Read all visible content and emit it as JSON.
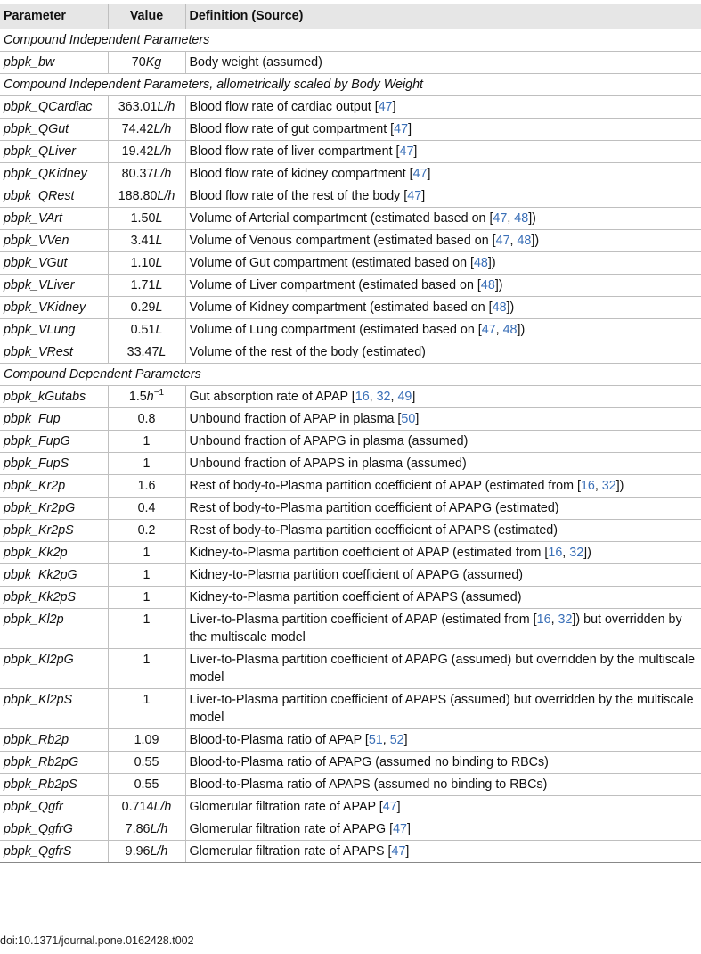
{
  "header": {
    "parameter": "Parameter",
    "value": "Value",
    "definition": "Definition (Source)"
  },
  "rows": [
    {
      "section": "Compound Independent Parameters"
    },
    {
      "param": "pbpk_bw",
      "num": "70",
      "unit": "Kg",
      "parts": [
        {
          "t": "Body weight (assumed)"
        }
      ]
    },
    {
      "section": "Compound Independent Parameters, allometrically scaled by Body Weight"
    },
    {
      "param": "pbpk_QCardiac",
      "num": "363.01",
      "unit": "L/h",
      "parts": [
        {
          "t": "Blood flow rate of cardiac output ["
        },
        {
          "r": "47"
        },
        {
          "t": "]"
        }
      ]
    },
    {
      "param": "pbpk_QGut",
      "num": "74.42",
      "unit": "L/h",
      "parts": [
        {
          "t": "Blood flow rate of gut compartment ["
        },
        {
          "r": "47"
        },
        {
          "t": "]"
        }
      ]
    },
    {
      "param": "pbpk_QLiver",
      "num": "19.42",
      "unit": "L/h",
      "parts": [
        {
          "t": "Blood flow rate of liver compartment ["
        },
        {
          "r": "47"
        },
        {
          "t": "]"
        }
      ]
    },
    {
      "param": "pbpk_QKidney",
      "num": "80.37",
      "unit": "L/h",
      "parts": [
        {
          "t": "Blood flow rate of kidney compartment ["
        },
        {
          "r": "47"
        },
        {
          "t": "]"
        }
      ]
    },
    {
      "param": "pbpk_QRest",
      "num": "188.80",
      "unit": "L/h",
      "parts": [
        {
          "t": "Blood flow rate of the rest of the body ["
        },
        {
          "r": "47"
        },
        {
          "t": "]"
        }
      ]
    },
    {
      "param": "pbpk_VArt",
      "num": "1.50",
      "unit": "L",
      "parts": [
        {
          "t": "Volume of Arterial compartment (estimated based on ["
        },
        {
          "r": "47"
        },
        {
          "t": ", "
        },
        {
          "r": "48"
        },
        {
          "t": "])"
        }
      ]
    },
    {
      "param": "pbpk_VVen",
      "num": "3.41",
      "unit": "L",
      "parts": [
        {
          "t": "Volume of Venous compartment (estimated based on ["
        },
        {
          "r": "47"
        },
        {
          "t": ", "
        },
        {
          "r": "48"
        },
        {
          "t": "])"
        }
      ]
    },
    {
      "param": "pbpk_VGut",
      "num": "1.10",
      "unit": "L",
      "parts": [
        {
          "t": "Volume of Gut compartment (estimated based on ["
        },
        {
          "r": "48"
        },
        {
          "t": "])"
        }
      ]
    },
    {
      "param": "pbpk_VLiver",
      "num": "1.71",
      "unit": "L",
      "parts": [
        {
          "t": "Volume of Liver compartment (estimated based on ["
        },
        {
          "r": "48"
        },
        {
          "t": "])"
        }
      ]
    },
    {
      "param": "pbpk_VKidney",
      "num": "0.29",
      "unit": "L",
      "parts": [
        {
          "t": "Volume of Kidney compartment (estimated based on ["
        },
        {
          "r": "48"
        },
        {
          "t": "])"
        }
      ]
    },
    {
      "param": "pbpk_VLung",
      "num": "0.51",
      "unit": "L",
      "parts": [
        {
          "t": "Volume of Lung compartment (estimated based on ["
        },
        {
          "r": "47"
        },
        {
          "t": ", "
        },
        {
          "r": "48"
        },
        {
          "t": "])"
        }
      ]
    },
    {
      "param": "pbpk_VRest",
      "num": "33.47",
      "unit": "L",
      "parts": [
        {
          "t": "Volume of the rest of the body (estimated)"
        }
      ]
    },
    {
      "section": "Compound Dependent Parameters"
    },
    {
      "param": "pbpk_kGutabs",
      "num": "1.5",
      "unit": "h",
      "sup": "−1",
      "parts": [
        {
          "t": "Gut absorption rate of APAP ["
        },
        {
          "r": "16"
        },
        {
          "t": ", "
        },
        {
          "r": "32"
        },
        {
          "t": ", "
        },
        {
          "r": "49"
        },
        {
          "t": "]"
        }
      ]
    },
    {
      "param": "pbpk_Fup",
      "num": "0.8",
      "parts": [
        {
          "t": "Unbound fraction of APAP in plasma ["
        },
        {
          "r": "50"
        },
        {
          "t": "]"
        }
      ]
    },
    {
      "param": "pbpk_FupG",
      "num": "1",
      "parts": [
        {
          "t": "Unbound fraction of APAPG in plasma (assumed)"
        }
      ]
    },
    {
      "param": "pbpk_FupS",
      "num": "1",
      "parts": [
        {
          "t": "Unbound fraction of APAPS in plasma (assumed)"
        }
      ]
    },
    {
      "param": "pbpk_Kr2p",
      "num": "1.6",
      "parts": [
        {
          "t": "Rest of body-to-Plasma partition coefficient of APAP (estimated from ["
        },
        {
          "r": "16"
        },
        {
          "t": ", "
        },
        {
          "r": "32"
        },
        {
          "t": "])"
        }
      ]
    },
    {
      "param": "pbpk_Kr2pG",
      "num": "0.4",
      "parts": [
        {
          "t": "Rest of body-to-Plasma partition coefficient of APAPG (estimated)"
        }
      ]
    },
    {
      "param": "pbpk_Kr2pS",
      "num": "0.2",
      "parts": [
        {
          "t": "Rest of body-to-Plasma partition coefficient of APAPS (estimated)"
        }
      ]
    },
    {
      "param": "pbpk_Kk2p",
      "num": "1",
      "parts": [
        {
          "t": "Kidney-to-Plasma partition coefficient of APAP (estimated from ["
        },
        {
          "r": "16"
        },
        {
          "t": ", "
        },
        {
          "r": "32"
        },
        {
          "t": "])"
        }
      ]
    },
    {
      "param": "pbpk_Kk2pG",
      "num": "1",
      "parts": [
        {
          "t": "Kidney-to-Plasma partition coefficient of APAPG (assumed)"
        }
      ]
    },
    {
      "param": "pbpk_Kk2pS",
      "num": "1",
      "parts": [
        {
          "t": "Kidney-to-Plasma partition coefficient of APAPS (assumed)"
        }
      ]
    },
    {
      "param": "pbpk_Kl2p",
      "num": "1",
      "parts": [
        {
          "t": "Liver-to-Plasma partition coefficient of APAP (estimated from ["
        },
        {
          "r": "16"
        },
        {
          "t": ", "
        },
        {
          "r": "32"
        },
        {
          "t": "]) but overridden by the multiscale model"
        }
      ]
    },
    {
      "param": "pbpk_Kl2pG",
      "num": "1",
      "parts": [
        {
          "t": "Liver-to-Plasma partition coefficient of APAPG (assumed) but overridden by the multiscale model"
        }
      ]
    },
    {
      "param": "pbpk_Kl2pS",
      "num": "1",
      "parts": [
        {
          "t": "Liver-to-Plasma partition coefficient of APAPS (assumed) but overridden by the multiscale model"
        }
      ]
    },
    {
      "param": "pbpk_Rb2p",
      "num": "1.09",
      "parts": [
        {
          "t": "Blood-to-Plasma ratio of APAP ["
        },
        {
          "r": "51"
        },
        {
          "t": ", "
        },
        {
          "r": "52"
        },
        {
          "t": "]"
        }
      ]
    },
    {
      "param": "pbpk_Rb2pG",
      "num": "0.55",
      "parts": [
        {
          "t": "Blood-to-Plasma ratio of APAPG (assumed no binding to RBCs)"
        }
      ]
    },
    {
      "param": "pbpk_Rb2pS",
      "num": "0.55",
      "parts": [
        {
          "t": "Blood-to-Plasma ratio of APAPS (assumed no binding to RBCs)"
        }
      ]
    },
    {
      "param": "pbpk_Qgfr",
      "num": "0.714",
      "unit": "L/h",
      "parts": [
        {
          "t": "Glomerular filtration rate of APAP ["
        },
        {
          "r": "47"
        },
        {
          "t": "]"
        }
      ]
    },
    {
      "param": "pbpk_QgfrG",
      "num": "7.86",
      "unit": "L/h",
      "parts": [
        {
          "t": "Glomerular filtration rate of APAPG ["
        },
        {
          "r": "47"
        },
        {
          "t": "]"
        }
      ]
    },
    {
      "param": "pbpk_QgfrS",
      "num": "9.96",
      "unit": "L/h",
      "parts": [
        {
          "t": "Glomerular filtration rate of APAPS ["
        },
        {
          "r": "47"
        },
        {
          "t": "]"
        }
      ]
    }
  ],
  "footer": {
    "doi": "doi:10.1371/journal.pone.0162428.t002"
  },
  "colors": {
    "link": "#3a6fb7",
    "header_bg": "#e6e6e6"
  }
}
